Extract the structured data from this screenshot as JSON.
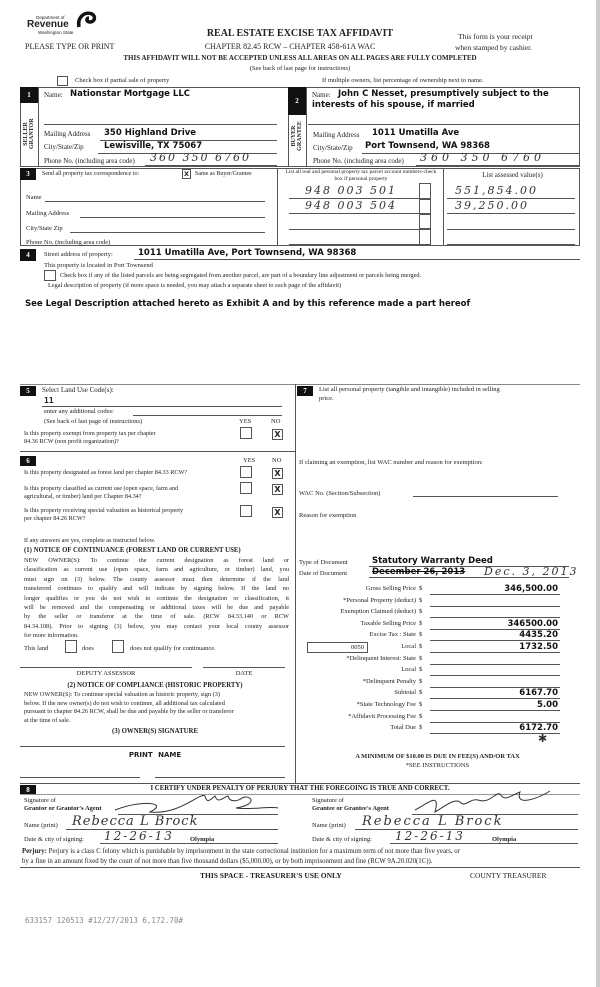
{
  "header": {
    "logo_small": "Department of",
    "logo_main": "Revenue",
    "logo_state": "Washington State",
    "title": "REAL ESTATE EXCISE TAX AFFIDAVIT",
    "please": "PLEASE TYPE OR PRINT",
    "chapter": "CHAPTER 82.45 RCW – CHAPTER 458-61A WAC",
    "receipt1": "This form is your receipt",
    "receipt2": "when stamped by cashier.",
    "warning": "THIS AFFIDAVIT WILL NOT BE ACCEPTED UNLESS ALL AREAS ON ALL PAGES ARE FULLY COMPLETED",
    "see_back": "(See back of last page for instructions)",
    "partial_sale": "Check box if partial sale of property",
    "multiple_owners": "If multiple owners, list percentage of ownership next to name."
  },
  "seller": {
    "num": "1",
    "side_label": "SELLER GRANTOR",
    "name_label": "Name:",
    "name": "Nationstar Mortgage LLC",
    "mail_label": "Mailing Address",
    "mail": "350 Highland Drive",
    "city_label": "City/State/Zip",
    "city": "Lewisville, TX 75067",
    "phone_label": "Phone No. (including area code)",
    "phone": "360 350 6760"
  },
  "buyer": {
    "num": "2",
    "side_label": "BUYER GRANTEE",
    "name_label": "Name:",
    "name1": "John C Nesset, presumptively subject to the",
    "name2": "interests of his spouse, if married",
    "mail_label": "Mailing Address",
    "mail": "1011 Umatilla Ave",
    "city_label": "City/State/Zip",
    "city": "Port Townsend, WA 98368",
    "phone_label": "Phone No. (including area code)",
    "phone": "360 350 6760"
  },
  "sec3": {
    "num": "3",
    "send_label": "Send all property tax correspondence to:",
    "same_mark": "X",
    "same_label": "Same as Buyer/Grantee",
    "name_label": "Name",
    "mail_label": "Mailing Address",
    "city_label": "City/State Zip",
    "phone_label": "Phone No. (including area code)",
    "parcel_header": "List all real and personal property tax parcel account numbers-check box if personal property",
    "assessed_header": "List assessed value(s)",
    "parcels": [
      "948 003 501",
      "948 003 504"
    ],
    "values": [
      "551,854.00",
      "39,250.00"
    ]
  },
  "sec4": {
    "num": "4",
    "street_label": "Street address of property:",
    "street": "1011 Umatilla Ave, Port Townsend, WA 98368",
    "located": "This property is located in Port Townsend",
    "segregated": "Check box if any of the listed parcels are being segregated from another parcel, are part of a boundary line adjustment or parcels being merged.",
    "legal_label": "Legal description of property (if more space is needed, you may attach a separate sheet to each page of the affidavit)",
    "legal": "See Legal Description attached hereto as Exhibit A and by this reference made a part hereof"
  },
  "sec5": {
    "num": "5",
    "land_use_label": "Select Land Use Code(s):",
    "land_use": "11",
    "additional": "enter any additional codes:",
    "see_back": "(See back of last page of instructions)",
    "yes": "YES",
    "no": "NO",
    "exempt_q1": "Is this property exempt from property tax per chapter",
    "exempt_q2": "84.36 RCW (non profit organization)?",
    "exempt_mark": "X"
  },
  "sec6": {
    "num": "6",
    "yes": "YES",
    "no": "NO",
    "q1": "Is this property designated as forest land per chapter 84.33 RCW?",
    "q2a": "Is this property classified as current use (open space, farm and",
    "q2b": "agricultural, or timber) land per Chapter 84.34?",
    "q3a": "Is this property receiving special valuation as historical property",
    "q3b": "per chapter 84.26 RCW?",
    "mark": "X",
    "if_yes": "If any answers are yes, complete as instructed below.",
    "n1_title": "(1) NOTICE OF CONTINUANCE (FOREST LAND OR CURRENT USE)",
    "n1_lines": [
      "NEW OWNER(S): To continue the current designation as forest land or",
      "classification as current use (open space, farm and agriculture, or timber) land, you",
      "must sign on (3) below. The county assessor must then determine if the land",
      "transferred continues to qualify and will indicate by signing below. If the land no",
      "longer qualifies or you do not wish to continue the designation or classification, it",
      "will be removed and the compensating or additional taxes will be due and payable",
      "by the seller or transferor at the time of sale. (RCW 84.33.140 or RCW",
      "84.34.108). Prior to signing (3) below, you may contact your local county assessor",
      "for more information."
    ],
    "this_land": "This land",
    "does": "does",
    "does_not": "does not qualify for continuance.",
    "deputy": "DEPUTY ASSESSOR",
    "date": "DATE",
    "n2_title": "(2) NOTICE OF COMPLIANCE (HISTORIC PROPERTY)",
    "n2_lines": [
      "NEW OWNER(S): To continue special valuation as historic property, sign (3)",
      "below. If the new owner(s) do not wish to continue, all additional tax calculated",
      "pursuant to chapter 84.26 RCW, shall be due and payable by the seller or transferor",
      "at the time of sale."
    ],
    "n3_title": "(3) OWNER(S) SIGNATURE",
    "print_name": "PRINT NAME"
  },
  "sec7": {
    "num": "7",
    "personal1": "List all personal property (tangible and intangible) included in selling",
    "personal2": "price.",
    "exemption": "If claiming an exemption, list WAC number and reason for exemption:",
    "wac": "WAC No. (Section/Subsection)",
    "reason": "Reason for exemption",
    "doc_type_label": "Type of Document",
    "doc_type": "Statutory Warranty Deed",
    "doc_date_label": "Date of Document",
    "doc_date": "December 26, 2013",
    "doc_date_hand": "Dec. 3, 2013",
    "tax_rows": [
      {
        "label": "Gross Selling Price",
        "value": "346,500.00"
      },
      {
        "label": "*Personal Property (deduct)",
        "value": ""
      },
      {
        "label": "Exemption Claimed (deduct)",
        "value": ""
      },
      {
        "label": "Taxable Selling Price",
        "value": "346500.00"
      },
      {
        "label": "Excise Tax : State",
        "value": "4435.20"
      },
      {
        "label": "Local",
        "value": "1732.50"
      },
      {
        "label": "*Delinquent Interest: State",
        "value": ""
      },
      {
        "label": "Local",
        "value": ""
      },
      {
        "label": "*Delinquent Penalty",
        "value": ""
      },
      {
        "label": "Subtotal",
        "value": "6167.70"
      },
      {
        "label": "*State Technology Fee",
        "value": "5.00"
      },
      {
        "label": "*Affidavit Processing Fee",
        "value": ""
      },
      {
        "label": "Total Due",
        "value": "6172.70"
      }
    ],
    "currency": "$",
    "local_code": "0050",
    "minimum": "A MINIMUM OF $10.00 IS DUE IN FEE(S) AND/OR TAX",
    "see_instr": "*SEE INSTRUCTIONS"
  },
  "sec8": {
    "num": "8",
    "certify": "I CERTIFY UNDER PENALTY OF PERJURY THAT THE FOREGOING IS TRUE AND CORRECT.",
    "sig_of": "Signature of",
    "grantor_agent": "Grantor or Grantor's Agent",
    "grantee_agent": "Grantee or Grantee's Agent",
    "name_print": "Name (print)",
    "date_city": "Date & city of signing:",
    "grantor_name": "Rebecca L Brock",
    "grantee_name": "Rebecca L Brock",
    "grantor_date": "12-26-13",
    "grantee_date": "12-26-13",
    "city": "Olympia",
    "perjury_label": "Perjury:",
    "perjury1": "Perjury is a class C felony which is punishable by imprisonment in the state correctional institution for a maximum term of not more than five years, or",
    "perjury2": "by a fine in an amount fixed by the court of not more than five thousand dollars ($5,000.00), or by both imprisonment and fine (RCW 9A.20.020(1C)).",
    "treasurer_only": "THIS SPACE - TREASURER'S USE ONLY",
    "county_treasurer": "COUNTY TREASURER"
  },
  "stamp": "633157 120513 #12/27/2013 6,172.70#"
}
